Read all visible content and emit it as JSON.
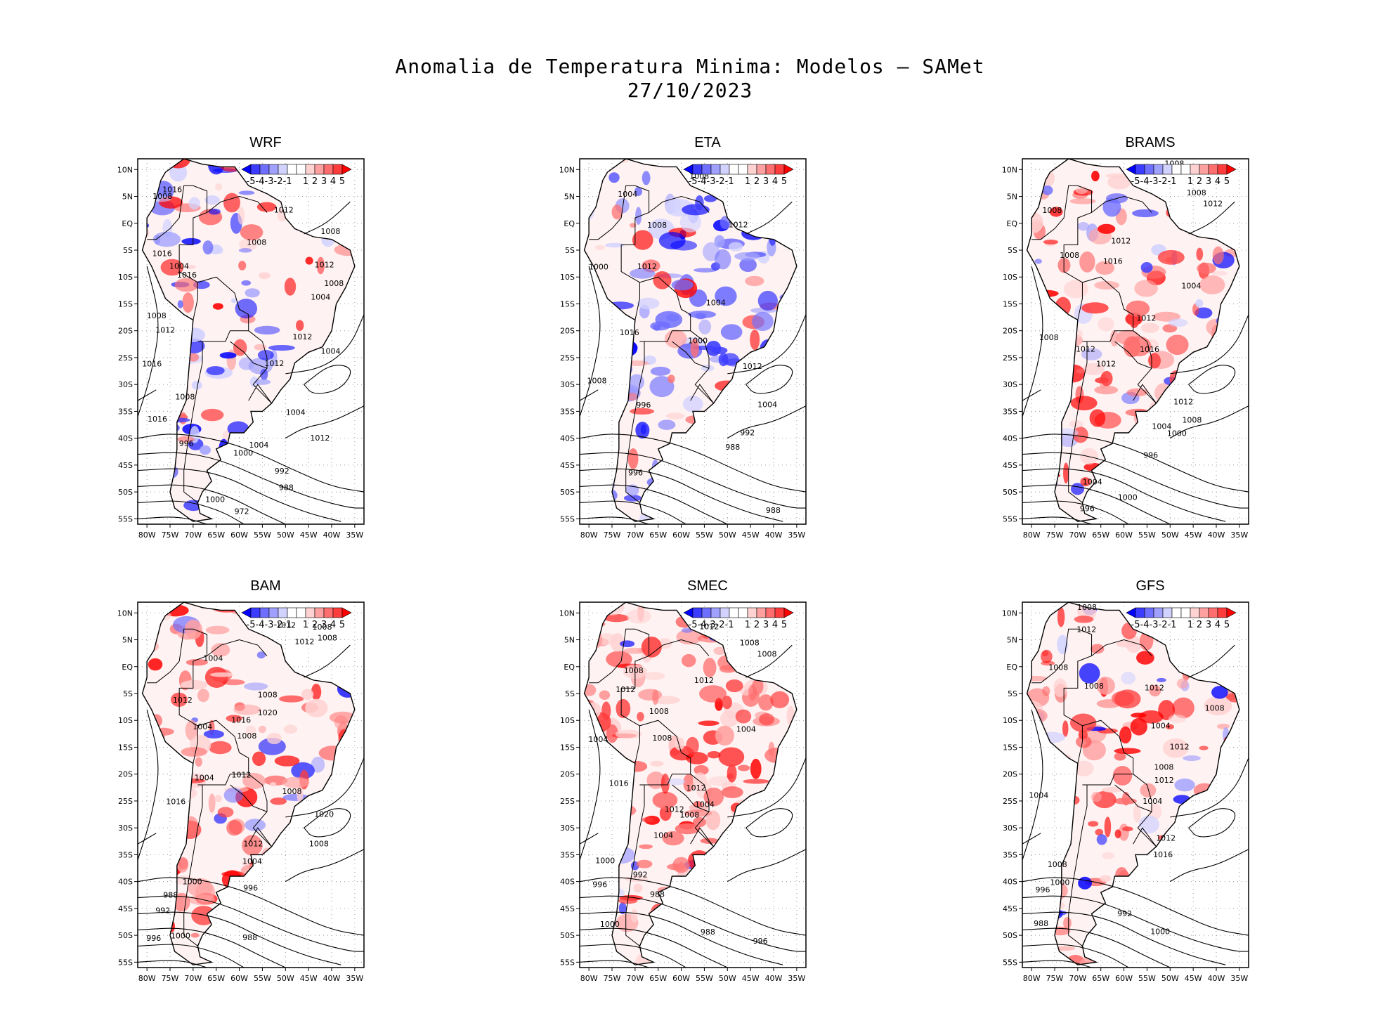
{
  "title": {
    "line1": "Anomalia de Temperatura Minima: Modelos — SAMet",
    "line2": "27/10/2023"
  },
  "map": {
    "lat_ticks": [
      "10N",
      "5N",
      "EQ",
      "5S",
      "10S",
      "15S",
      "20S",
      "25S",
      "30S",
      "35S",
      "40S",
      "45S",
      "50S",
      "55S"
    ],
    "lon_ticks": [
      "80W",
      "75W",
      "70W",
      "65W",
      "60W",
      "55W",
      "50W",
      "45W",
      "40W",
      "35W"
    ],
    "colorbar": {
      "labels": [
        "-5",
        "-4",
        "-3",
        "-2",
        "-1",
        "1",
        "2",
        "3",
        "4",
        "5"
      ],
      "colors": [
        "#0000ff",
        "#3c3cff",
        "#6e6eff",
        "#a0a0ff",
        "#d2d2ff",
        "#ffffff",
        "#ffffff",
        "#ffd2d2",
        "#ffa0a0",
        "#ff6e6e",
        "#ff3c3c",
        "#ff0000"
      ]
    },
    "pressure_units": "hPa"
  },
  "panels": [
    {
      "name": "WRF",
      "tone": "mixed",
      "labels": [
        "1008",
        "1016",
        "1012",
        "1008",
        "1008",
        "1008",
        "1016",
        "1004",
        "1016",
        "1012",
        "1008",
        "1004",
        "1008",
        "1012",
        "1012",
        "1012",
        "1004",
        "1016",
        "1008",
        "1004",
        "1016",
        "1012",
        "1004",
        "1000",
        "996",
        "992",
        "988",
        "1000",
        "972"
      ]
    },
    {
      "name": "ETA",
      "tone": "cold",
      "labels": [
        "1008",
        "1004",
        "1012",
        "1008",
        "1000",
        "1012",
        "1004",
        "1016",
        "1000",
        "1012",
        "1008",
        "1004",
        "996",
        "992",
        "988",
        "996",
        "988"
      ]
    },
    {
      "name": "BRAMS",
      "tone": "warm",
      "labels": [
        "1008",
        "1012",
        "1008",
        "1008",
        "1008",
        "1012",
        "1016",
        "1004",
        "1012",
        "1008",
        "1012",
        "1016",
        "1012",
        "1012",
        "1008",
        "1004",
        "1000",
        "996",
        "1004",
        "1000",
        "996"
      ]
    },
    {
      "name": "BAM",
      "tone": "warm",
      "labels": [
        "1008",
        "1012",
        "1008",
        "1012",
        "1004",
        "1008",
        "1012",
        "1016",
        "1020",
        "1004",
        "1008",
        "1004",
        "1012",
        "1008",
        "1020",
        "1016",
        "1012",
        "1008",
        "1004",
        "1000",
        "996",
        "992",
        "988",
        "1000",
        "996",
        "988"
      ]
    },
    {
      "name": "SMEC",
      "tone": "hot",
      "labels": [
        "1012",
        "1008",
        "1008",
        "1008",
        "1012",
        "1012",
        "1008",
        "1004",
        "1004",
        "1008",
        "1016",
        "1012",
        "1004",
        "1012",
        "1008",
        "1004",
        "1000",
        "992",
        "996",
        "988",
        "1000",
        "996",
        "988"
      ]
    },
    {
      "name": "GFS",
      "tone": "warm",
      "labels": [
        "1008",
        "1012",
        "1008",
        "1008",
        "1012",
        "1008",
        "1004",
        "1012",
        "1008",
        "1012",
        "1004",
        "1004",
        "1012",
        "1016",
        "1008",
        "996",
        "1000",
        "992",
        "988",
        "1000"
      ]
    }
  ]
}
